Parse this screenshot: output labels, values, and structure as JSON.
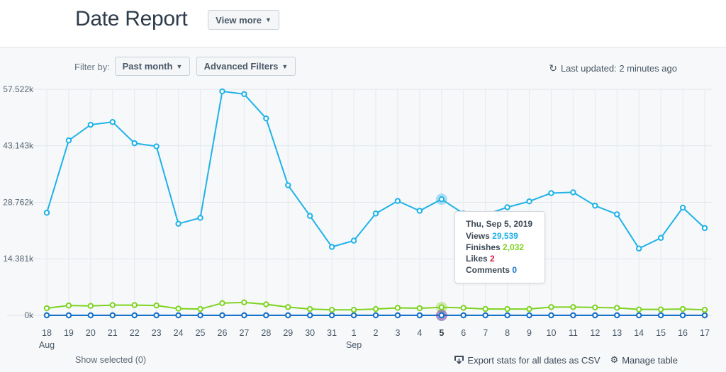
{
  "header": {
    "title": "Date Report",
    "view_more_label": "View more"
  },
  "filters": {
    "label": "Filter by:",
    "period_label": "Past month",
    "advanced_label": "Advanced Filters",
    "last_updated": "Last updated: 2 minutes ago"
  },
  "chart_data": {
    "type": "line",
    "ylim": [
      0,
      57522
    ],
    "y_ticks": [
      "57.522k",
      "43.143k",
      "28.762k",
      "14.381k",
      "0k"
    ],
    "y_tick_values": [
      57522,
      43143,
      28762,
      14381,
      0
    ],
    "categories": [
      "18",
      "19",
      "20",
      "21",
      "22",
      "23",
      "24",
      "25",
      "26",
      "27",
      "28",
      "29",
      "30",
      "31",
      "1",
      "2",
      "3",
      "4",
      "5",
      "6",
      "7",
      "8",
      "9",
      "10",
      "11",
      "12",
      "13",
      "14",
      "15",
      "16",
      "17"
    ],
    "month_labels": [
      {
        "index": 0,
        "label": "Aug"
      },
      {
        "index": 14,
        "label": "Sep"
      }
    ],
    "highlight_index": 18,
    "series": [
      {
        "name": "Views",
        "color": "#1fb2e8",
        "values": [
          26100,
          44500,
          48500,
          49200,
          43800,
          43000,
          23300,
          24800,
          57000,
          56300,
          50100,
          33100,
          25300,
          17400,
          19000,
          25900,
          29100,
          26600,
          29539,
          25900,
          25600,
          27500,
          29000,
          31100,
          31300,
          27900,
          25700,
          17000,
          19700,
          27400,
          22200
        ]
      },
      {
        "name": "Finishes",
        "color": "#7ed321",
        "values": [
          1800,
          2500,
          2400,
          2600,
          2600,
          2500,
          1700,
          1600,
          3100,
          3300,
          2800,
          2100,
          1600,
          1400,
          1400,
          1600,
          1900,
          1800,
          2032,
          1900,
          1600,
          1600,
          1600,
          2100,
          2100,
          2000,
          1900,
          1500,
          1500,
          1600,
          1400
        ]
      },
      {
        "name": "Likes",
        "color": "#1a72c9",
        "values": [
          0,
          0,
          0,
          0,
          0,
          0,
          0,
          0,
          0,
          0,
          0,
          0,
          0,
          0,
          0,
          0,
          0,
          0,
          2,
          0,
          0,
          0,
          0,
          0,
          0,
          0,
          0,
          0,
          0,
          0,
          0
        ]
      },
      {
        "name": "Comments",
        "color": "#1a72c9",
        "values": [
          0,
          0,
          0,
          0,
          0,
          0,
          0,
          0,
          0,
          0,
          0,
          0,
          0,
          0,
          0,
          0,
          0,
          0,
          0,
          0,
          0,
          0,
          0,
          0,
          0,
          0,
          0,
          0,
          0,
          0,
          0
        ]
      }
    ],
    "grid": true
  },
  "tooltip": {
    "date": "Thu, Sep 5, 2019",
    "rows": [
      {
        "label": "Views",
        "value": "29,539",
        "color": "#1fb2e8"
      },
      {
        "label": "Finishes",
        "value": "2,032",
        "color": "#7ed321"
      },
      {
        "label": "Likes",
        "value": "2",
        "color": "#e0183a"
      },
      {
        "label": "Comments",
        "value": "0",
        "color": "#1a72c9"
      }
    ]
  },
  "footer": {
    "show_selected": "Show selected (0)",
    "export_label": "Export stats for all dates as CSV",
    "manage_label": "Manage table"
  },
  "icons": {
    "refresh": "refresh-icon",
    "export": "export-icon",
    "gear": "gear-icon",
    "chevron": "chevron-down-icon"
  }
}
